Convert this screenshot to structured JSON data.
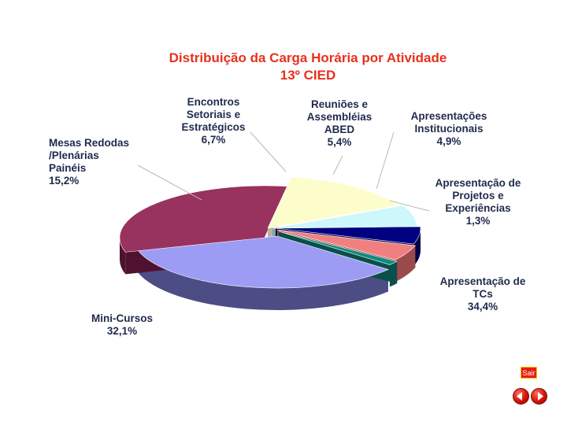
{
  "chart_data": {
    "type": "pie",
    "title": "Distribuição da Carga Horária por Atividade",
    "subtitle": "13º CIED",
    "slices": [
      {
        "lines": [
          "Apresentação de",
          "TCs",
          "34,4%"
        ],
        "value": 34.4,
        "color": "#9c9cf5",
        "side": "#4d4d85"
      },
      {
        "lines": [
          "Mini-Cursos",
          "32,1%"
        ],
        "value": 32.1,
        "color": "#98325e",
        "side": "#4e1230"
      },
      {
        "lines": [
          "Mesas Redodas",
          "/Plenárias",
          "Painéis",
          "15,2%"
        ],
        "value": 15.2,
        "color": "#fdfdcc",
        "side": "#b5b595"
      },
      {
        "lines": [
          "Encontros",
          "Setoriais e",
          "Estratégicos",
          "6,7%"
        ],
        "value": 6.7,
        "color": "#ccf8fb",
        "side": "#7fa6a8"
      },
      {
        "lines": [
          "Reuniões e",
          "Assembléias",
          "ABED",
          "5,4%"
        ],
        "value": 5.4,
        "color": "#000080",
        "side": "#00004a"
      },
      {
        "lines": [
          "Apresentações",
          "Institucionais",
          "4,9%"
        ],
        "value": 4.9,
        "color": "#f08080",
        "side": "#9a4a4a"
      },
      {
        "lines": [
          "Apresentação de",
          "Projetos e",
          "Experiências",
          "1,3%"
        ],
        "value": 1.3,
        "color": "#108a80",
        "side": "#0a4f49"
      }
    ],
    "legend": "none"
  },
  "controls": {
    "exit_label": "Sair",
    "prev_icon": "arrow-left-icon",
    "next_icon": "arrow-right-icon"
  }
}
